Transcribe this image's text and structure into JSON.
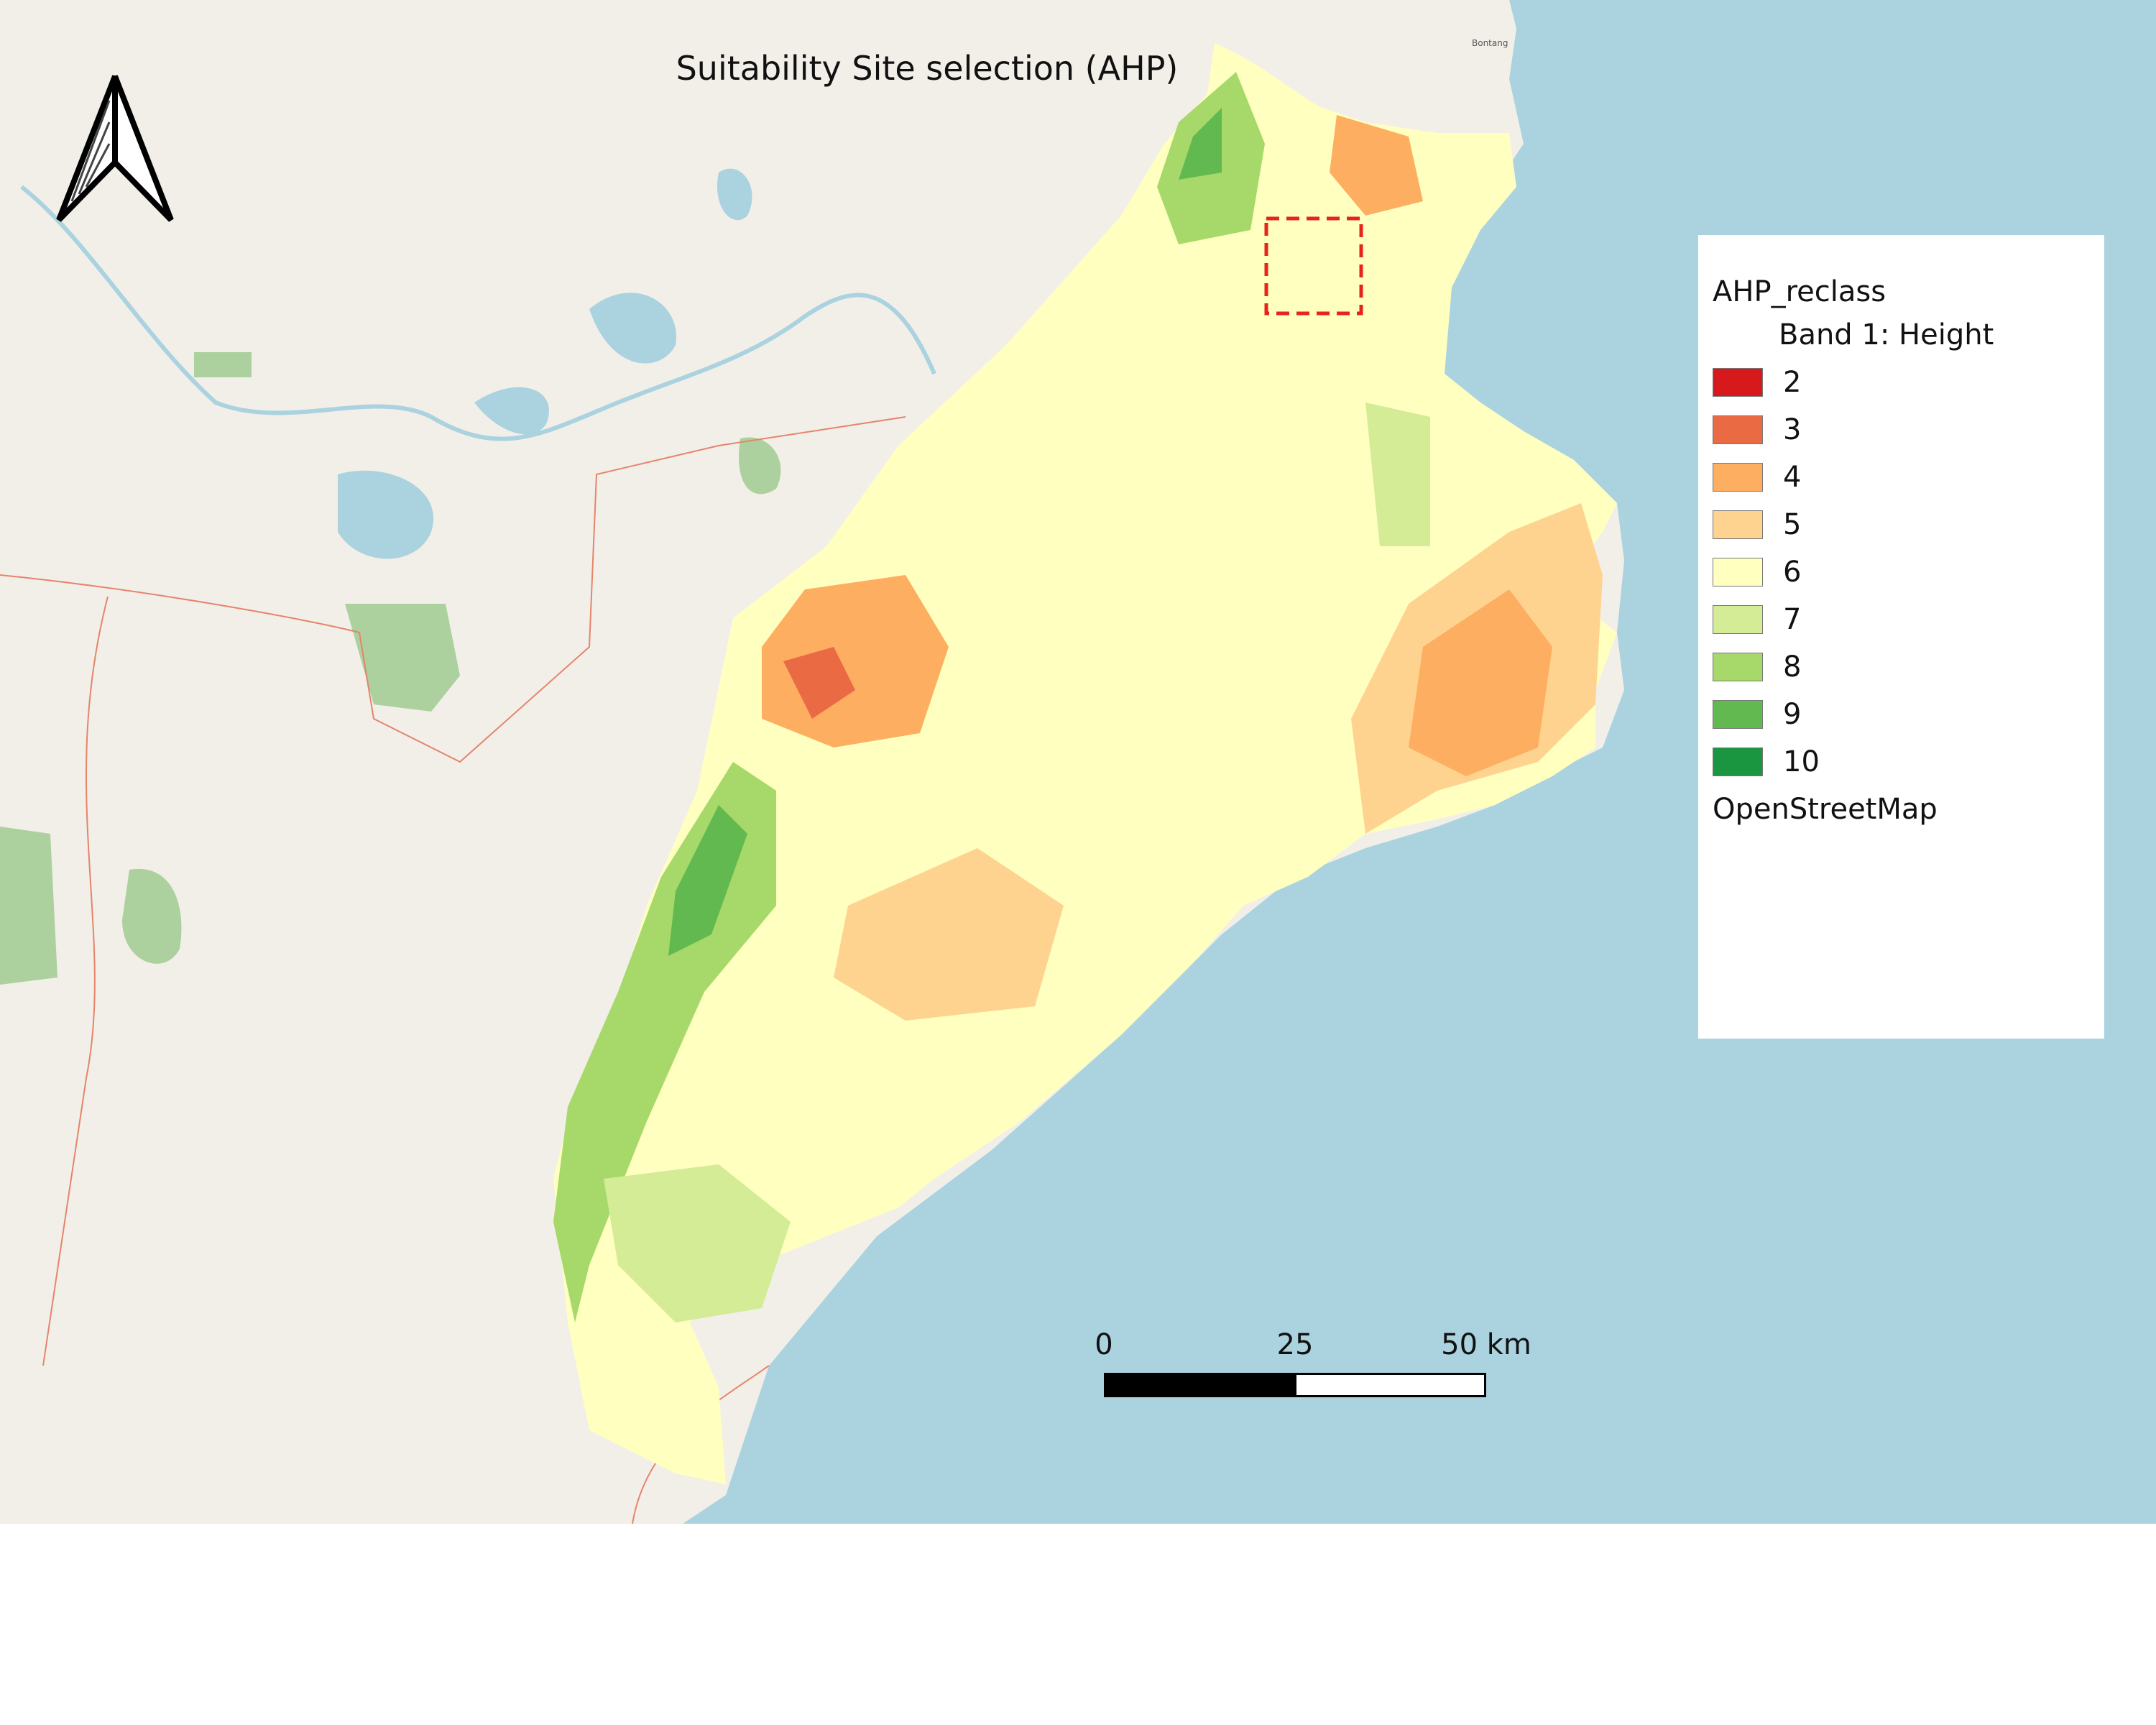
{
  "title": "Suitability Site selection (AHP)",
  "legend": {
    "layer_name": "AHP_reclass",
    "band_label": "Band 1: Height",
    "classes": [
      {
        "label": "2",
        "color": "#d7191c"
      },
      {
        "label": "3",
        "color": "#ea6a44"
      },
      {
        "label": "4",
        "color": "#fdae61"
      },
      {
        "label": "5",
        "color": "#fed38f"
      },
      {
        "label": "6",
        "color": "#ffffc0"
      },
      {
        "label": "7",
        "color": "#d3ec95"
      },
      {
        "label": "8",
        "color": "#a6d96a"
      },
      {
        "label": "9",
        "color": "#61b94f"
      },
      {
        "label": "10",
        "color": "#1a9641"
      }
    ],
    "basemap_label": "OpenStreetMap"
  },
  "scale_bar": {
    "labels": [
      "0",
      "25",
      "50 km"
    ],
    "colors": [
      "#000000",
      "#ffffff"
    ]
  },
  "north_arrow": {
    "icon": "north-arrow-icon"
  },
  "map_labels": {
    "town": "Bontang"
  },
  "colors": {
    "sea": "#aad3df",
    "land": "#f2efe9",
    "lake": "#aad3df",
    "forest": "#add19e",
    "highlight_box": "#e8231b"
  }
}
